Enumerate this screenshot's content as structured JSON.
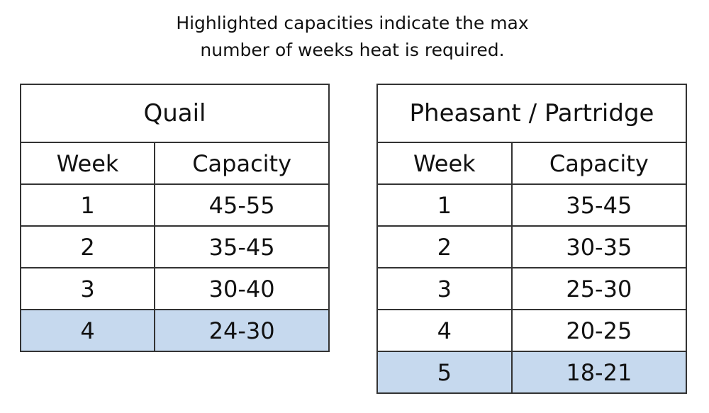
{
  "caption": [
    "Highlighted capacities indicate the max",
    "number of weeks heat is required."
  ],
  "tables": [
    {
      "title": "Quail",
      "header": [
        "Week",
        "Capacity"
      ],
      "rows": [
        [
          "1",
          "45-55"
        ],
        [
          "2",
          "35-45"
        ],
        [
          "3",
          "30-40"
        ],
        [
          "4",
          "24-30"
        ]
      ]
    },
    {
      "title": "Pheasant / Partridge",
      "header": [
        "Week",
        "Capacity"
      ],
      "rows": [
        [
          "1",
          "35-45"
        ],
        [
          "2",
          "30-35"
        ],
        [
          "3",
          "25-30"
        ],
        [
          "4",
          "20-25"
        ],
        [
          "5",
          "18-21"
        ]
      ]
    }
  ]
}
